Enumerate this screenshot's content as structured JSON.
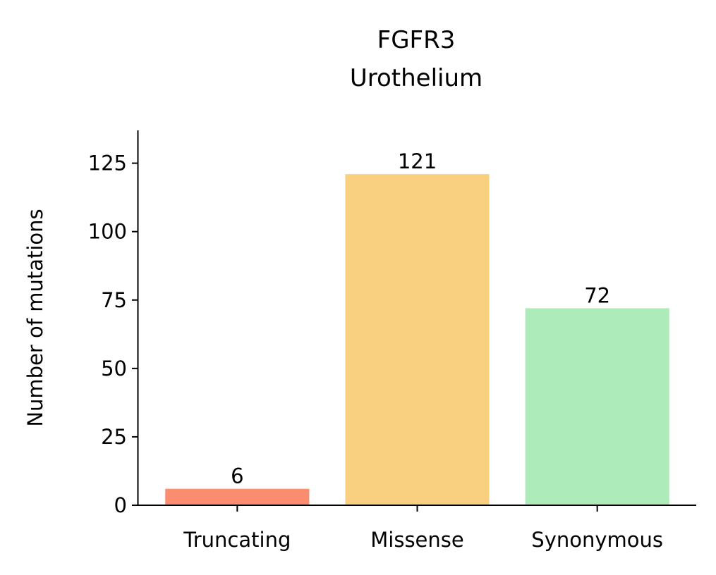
{
  "chart_data": {
    "type": "bar",
    "title": "FGFR3",
    "subtitle": "Urothelium",
    "xlabel": "",
    "ylabel": "Number of mutations",
    "categories": [
      "Truncating",
      "Missense",
      "Synonymous"
    ],
    "values": [
      6,
      121,
      72
    ],
    "colors": [
      "#fa8c70",
      "#f9d07f",
      "#adebbb"
    ],
    "ylim": [
      0,
      137
    ],
    "yticks": [
      0,
      25,
      50,
      75,
      100,
      125
    ],
    "grid": false,
    "legend": "none"
  }
}
